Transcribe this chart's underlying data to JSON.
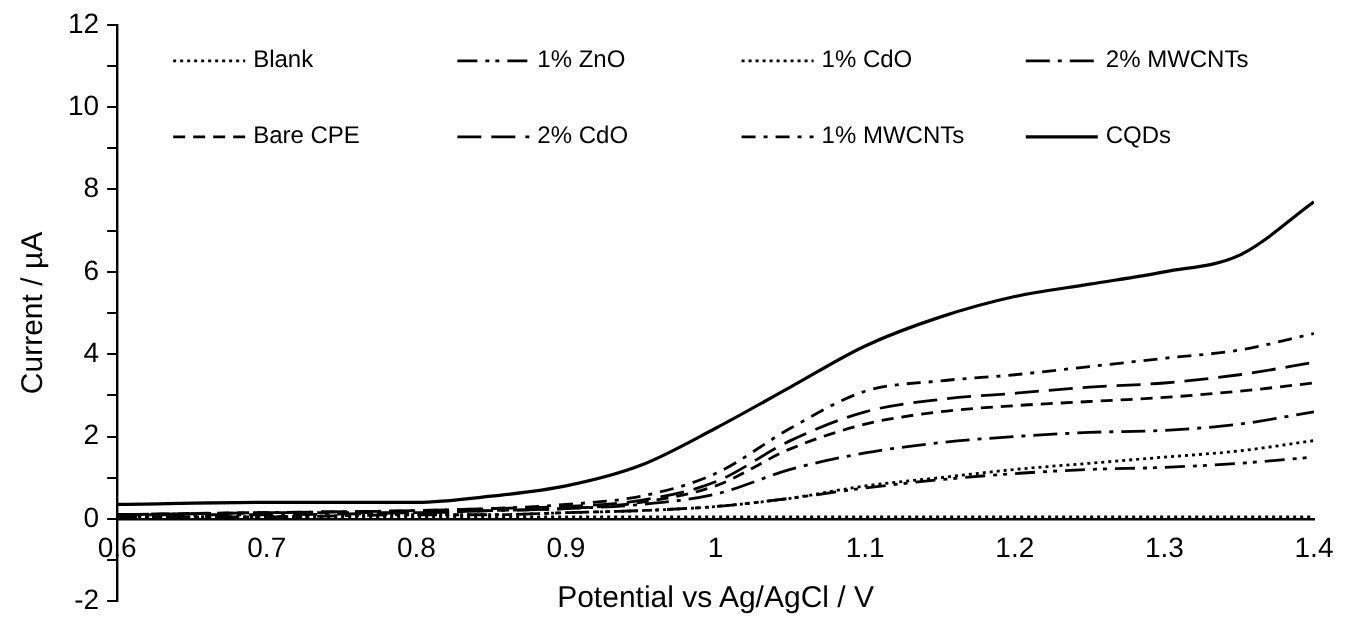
{
  "chart_data": {
    "type": "line",
    "xlabel": "Potential vs Ag/AgCl / V",
    "ylabel": "Current / µA",
    "x": [
      0.6,
      0.7,
      0.8,
      0.85,
      0.9,
      0.95,
      1.0,
      1.05,
      1.1,
      1.15,
      1.2,
      1.25,
      1.3,
      1.35,
      1.4
    ],
    "xlim": [
      0.6,
      1.4
    ],
    "xticks": [
      0.6,
      0.7,
      0.8,
      0.9,
      1,
      1.1,
      1.2,
      1.3,
      1.4
    ],
    "ylim": [
      -2,
      12
    ],
    "yticks": [
      -2,
      {
        "value": -1,
        "label": null
      },
      0,
      {
        "value": 1,
        "label": null
      },
      2,
      {
        "value": 3,
        "label": null
      },
      4,
      {
        "value": 5,
        "label": null
      },
      6,
      {
        "value": 7,
        "label": null
      },
      8,
      {
        "value": 9,
        "label": null
      },
      10,
      {
        "value": 11,
        "label": null
      },
      12
    ],
    "grid": false,
    "legend": "top",
    "marker": "none",
    "series": [
      {
        "name": "Blank",
        "color": "#000000",
        "line_style": "dotted",
        "values": [
          0.05,
          0.05,
          0.05,
          0.05,
          0.05,
          0.05,
          0.05,
          0.05,
          0.05,
          0.05,
          0.05,
          0.05,
          0.05,
          0.05,
          0.05
        ]
      },
      {
        "name": "Bare CPE",
        "color": "#000000",
        "line_style": "dashed",
        "values": [
          0.1,
          0.15,
          0.15,
          0.2,
          0.25,
          0.4,
          0.8,
          1.7,
          2.3,
          2.6,
          2.75,
          2.85,
          2.95,
          3.1,
          3.3
        ]
      },
      {
        "name": "1% ZnO",
        "color": "#000000",
        "line_style": "dashdotdot",
        "values": [
          0.05,
          0.05,
          0.1,
          0.1,
          0.15,
          0.2,
          0.3,
          0.5,
          0.75,
          0.95,
          1.1,
          1.2,
          1.25,
          1.35,
          1.5
        ]
      },
      {
        "name": "2% CdO",
        "color": "#000000",
        "line_style": "longdash",
        "values": [
          0.1,
          0.15,
          0.2,
          0.25,
          0.3,
          0.45,
          0.9,
          1.9,
          2.6,
          2.9,
          3.05,
          3.2,
          3.3,
          3.5,
          3.8
        ]
      },
      {
        "name": "1% CdO",
        "color": "#000000",
        "line_style": "dotted",
        "values": [
          0.05,
          0.05,
          0.1,
          0.1,
          0.15,
          0.2,
          0.3,
          0.5,
          0.8,
          1.0,
          1.2,
          1.35,
          1.5,
          1.65,
          1.9
        ]
      },
      {
        "name": "1% MWCNTs",
        "color": "#000000",
        "line_style": "dashdot",
        "values": [
          0.1,
          0.15,
          0.2,
          0.25,
          0.35,
          0.55,
          1.1,
          2.2,
          3.1,
          3.35,
          3.5,
          3.7,
          3.9,
          4.1,
          4.5
        ]
      },
      {
        "name": "2% MWCNTs",
        "color": "#000000",
        "line_style": "longdashdot",
        "values": [
          0.1,
          0.1,
          0.15,
          0.2,
          0.25,
          0.35,
          0.6,
          1.2,
          1.6,
          1.85,
          2.0,
          2.1,
          2.15,
          2.3,
          2.6
        ]
      },
      {
        "name": "CQDs",
        "color": "#000000",
        "line_style": "solid",
        "values": [
          0.35,
          0.4,
          0.4,
          0.55,
          0.8,
          1.3,
          2.2,
          3.2,
          4.2,
          4.9,
          5.4,
          5.7,
          6.0,
          6.4,
          7.7
        ]
      }
    ]
  }
}
